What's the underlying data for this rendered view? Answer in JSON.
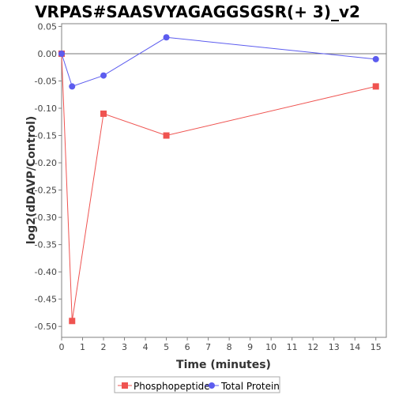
{
  "chart_data": {
    "type": "line",
    "title": "VRPAS#SAASVYAGAGGSGSR(+ 3)_v2",
    "xlabel": "Time (minutes)",
    "ylabel": "log2(dDAVP/Control)",
    "xlim": [
      0,
      15.5
    ],
    "ylim": [
      -0.52,
      0.055
    ],
    "x_ticks": [
      0,
      1,
      2,
      3,
      4,
      5,
      6,
      7,
      8,
      9,
      10,
      11,
      12,
      13,
      14,
      15
    ],
    "y_ticks": [
      0.05,
      0.0,
      -0.05,
      -0.1,
      -0.15,
      -0.2,
      -0.25,
      -0.3,
      -0.35,
      -0.4,
      -0.45,
      -0.5
    ],
    "y_tick_labels": [
      "0.05",
      "0.00",
      "-0.05",
      "-0.10",
      "-0.15",
      "-0.20",
      "-0.25",
      "-0.30",
      "-0.35",
      "-0.40",
      "-0.45",
      "-0.50"
    ],
    "zero_line": true,
    "grid": false,
    "legend_position": "bottom",
    "series": [
      {
        "name": "Phosphopeptide",
        "color": "#ef5350",
        "marker": "square",
        "x": [
          0,
          0.5,
          2,
          5,
          15
        ],
        "y": [
          0.0,
          -0.49,
          -0.11,
          -0.15,
          -0.06
        ]
      },
      {
        "name": "Total Protein",
        "color": "#5c5cef",
        "marker": "circle",
        "x": [
          0,
          0.5,
          2,
          5,
          15
        ],
        "y": [
          0.0,
          -0.06,
          -0.04,
          0.03,
          -0.01
        ]
      }
    ]
  }
}
